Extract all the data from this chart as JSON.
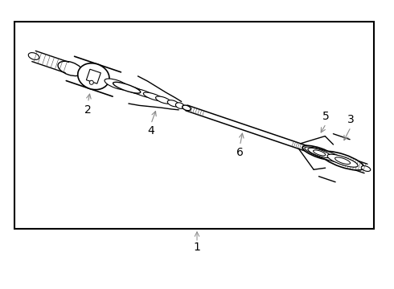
{
  "bg_color": "#ffffff",
  "border_color": "#000000",
  "line_color": "#000000",
  "label_1": "1",
  "label_2": "2",
  "label_3": "3",
  "label_4": "4",
  "label_5": "5",
  "label_6": "6",
  "label_fontsize": 10,
  "border_linewidth": 1.5,
  "arrow_color": "#888888"
}
